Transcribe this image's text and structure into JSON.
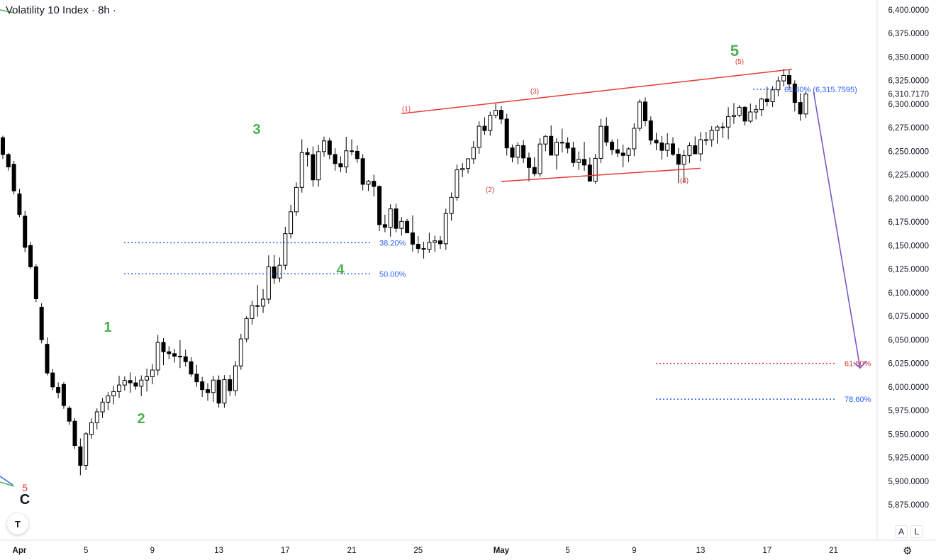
{
  "header": {
    "title": "Volatility 10 Index · 8h ·"
  },
  "buttons": {
    "auto_scale": "A",
    "log_scale": "L",
    "settings_icon": "gear-icon",
    "logo_icon": "tradingview-logo-icon"
  },
  "colors": {
    "up_candle_fill": "#ffffff",
    "candle_outline": "#000000",
    "down_candle_fill": "#000000",
    "wave_green": "#4caf50",
    "wave_red": "#e53935",
    "fib_blue": "#2962ff",
    "fib_red": "#e53935",
    "projection_arrow": "#7e57c2",
    "channel_line": "#e53935"
  },
  "chart_data": {
    "type": "candlestick",
    "title": "Volatility 10 Index · 8h ·",
    "y_axis": {
      "ticks": [
        "6,400.0000",
        "6,375.0000",
        "6,350.0000",
        "6,325.0000",
        "6,300.0000",
        "6,275.0000",
        "6,250.0000",
        "6,225.0000",
        "6,200.0000",
        "6,175.0000",
        "6,150.0000",
        "6,125.0000",
        "6,100.0000",
        "6,075.0000",
        "6,050.0000",
        "6,025.0000",
        "6,000.0000",
        "5,975.0000",
        "5,950.0000",
        "5,925.0000",
        "5,900.0000",
        "5,875.0000"
      ],
      "range": [
        5865,
        6410
      ],
      "last_price_label": "6,310.7170",
      "side": "right"
    },
    "x_axis": {
      "ticks": [
        {
          "label": "Apr",
          "day": 1,
          "bold": true
        },
        {
          "label": "5",
          "day": 5
        },
        {
          "label": "9",
          "day": 9
        },
        {
          "label": "13",
          "day": 13
        },
        {
          "label": "17",
          "day": 17
        },
        {
          "label": "21",
          "day": 21
        },
        {
          "label": "25",
          "day": 25
        },
        {
          "label": "May",
          "day": 30,
          "bold": true
        },
        {
          "label": "5",
          "day": 34
        },
        {
          "label": "9",
          "day": 38
        },
        {
          "label": "13",
          "day": 42
        },
        {
          "label": "17",
          "day": 46
        },
        {
          "label": "21",
          "day": 50
        }
      ],
      "range_days": [
        0,
        54
      ]
    },
    "grid": false,
    "candles": [
      [
        0.0,
        6264.4,
        6266.5,
        6241.9,
        6246.6
      ],
      [
        0.333,
        6246.6,
        6248.2,
        6229.6,
        6233.4
      ],
      [
        0.667,
        6236.2,
        6239.8,
        6204.2,
        6207.9
      ],
      [
        1.0,
        6204.8,
        6210.1,
        6180.1,
        6182.9
      ],
      [
        1.333,
        6181.2,
        6186.8,
        6142.9,
        6148.1
      ],
      [
        1.667,
        6150.0,
        6153.9,
        6125.3,
        6127.4
      ],
      [
        2.0,
        6127.4,
        6130.1,
        6089.8,
        6093.5
      ],
      [
        2.333,
        6084.5,
        6088.8,
        6046.3,
        6050.0
      ],
      [
        2.667,
        6045.2,
        6052.5,
        6012.2,
        6014.8
      ],
      [
        3.0,
        6014.8,
        6019.0,
        5996.5,
        6000.0
      ],
      [
        3.333,
        5999.5,
        6004.8,
        5988.1,
        5994.0
      ],
      [
        3.667,
        6002.6,
        6005.0,
        5976.7,
        5980.2
      ],
      [
        4.0,
        5977.4,
        5979.6,
        5959.7,
        5963.6
      ],
      [
        4.333,
        5963.6,
        5966.8,
        5934.3,
        5937.8
      ],
      [
        4.667,
        5936.4,
        5945.3,
        5906.3,
        5916.7
      ],
      [
        5.0,
        5916.7,
        5952.1,
        5911.8,
        5950.2
      ],
      [
        5.333,
        5949.5,
        5966.7,
        5945.1,
        5962.0
      ],
      [
        5.667,
        5962.0,
        5977.2,
        5955.0,
        5973.5
      ],
      [
        6.0,
        5973.5,
        5988.3,
        5967.1,
        5983.8
      ],
      [
        6.333,
        5983.8,
        5994.4,
        5975.4,
        5990.5
      ],
      [
        6.667,
        5990.5,
        6000.7,
        5981.5,
        5995.1
      ],
      [
        7.0,
        5995.1,
        6011.8,
        5988.2,
        6002.0
      ],
      [
        7.333,
        6002.0,
        6011.1,
        5996.2,
        6006.8
      ],
      [
        7.667,
        6006.8,
        6015.4,
        5993.8,
        6004.3
      ],
      [
        8.0,
        6004.3,
        6011.1,
        5997.0,
        6000.7
      ],
      [
        8.333,
        6000.7,
        6012.2,
        5990.1,
        6007.2
      ],
      [
        8.667,
        6007.2,
        6019.4,
        5995.2,
        6010.8
      ],
      [
        9.0,
        6010.8,
        6024.1,
        6002.8,
        6017.9
      ],
      [
        9.333,
        6017.9,
        6055.1,
        6012.3,
        6047.2
      ],
      [
        9.667,
        6047.2,
        6051.7,
        6023.0,
        6037.3
      ],
      [
        10.0,
        6037.3,
        6043.1,
        6029.4,
        6035.3
      ],
      [
        10.333,
        6035.3,
        6040.5,
        6025.6,
        6032.6
      ],
      [
        10.667,
        6032.6,
        6049.6,
        6020.0,
        6032.0
      ],
      [
        11.0,
        6032.0,
        6039.4,
        6021.5,
        6026.7
      ],
      [
        11.333,
        6026.7,
        6031.5,
        6010.7,
        6013.6
      ],
      [
        11.667,
        6013.6,
        6023.4,
        6000.1,
        6005.4
      ],
      [
        12.0,
        6005.4,
        6010.6,
        5989.2,
        5997.1
      ],
      [
        12.333,
        5997.1,
        6003.9,
        5985.3,
        5994.0
      ],
      [
        12.667,
        5994.0,
        6011.9,
        5984.1,
        6007.2
      ],
      [
        13.0,
        6007.2,
        6012.2,
        5978.2,
        5982.8
      ],
      [
        13.333,
        5982.8,
        6012.5,
        5977.9,
        6007.7
      ],
      [
        13.667,
        6007.7,
        6012.8,
        5990.6,
        5996.0
      ],
      [
        14.0,
        5996.0,
        6027.4,
        5990.6,
        6022.3
      ],
      [
        14.333,
        6022.3,
        6056.4,
        6018.2,
        6050.9
      ],
      [
        14.667,
        6050.9,
        6075.0,
        6047.3,
        6072.5
      ],
      [
        15.0,
        6072.5,
        6091.6,
        6066.2,
        6086.2
      ],
      [
        15.333,
        6086.2,
        6108.0,
        6074.6,
        6085.7
      ],
      [
        15.667,
        6085.7,
        6103.8,
        6078.4,
        6093.1
      ],
      [
        16.0,
        6093.1,
        6139.6,
        6088.1,
        6127.4
      ],
      [
        16.333,
        6127.4,
        6139.9,
        6109.0,
        6115.5
      ],
      [
        16.667,
        6115.5,
        6137.4,
        6111.1,
        6129.1
      ],
      [
        17.0,
        6129.1,
        6169.9,
        6124.2,
        6162.6
      ],
      [
        17.333,
        6162.6,
        6193.3,
        6157.5,
        6185.8
      ],
      [
        17.667,
        6185.8,
        6217.0,
        6181.4,
        6211.7
      ],
      [
        18.0,
        6211.7,
        6262.7,
        6206.1,
        6248.6
      ],
      [
        18.333,
        6248.6,
        6253.4,
        6233.8,
        6246.4
      ],
      [
        18.667,
        6246.4,
        6255.1,
        6212.5,
        6219.7
      ],
      [
        19.0,
        6219.7,
        6256.8,
        6212.5,
        6249.7
      ],
      [
        19.333,
        6249.7,
        6265.6,
        6244.3,
        6261.0
      ],
      [
        19.667,
        6261.0,
        6264.3,
        6241.6,
        6246.6
      ],
      [
        20.0,
        6246.6,
        6253.2,
        6229.4,
        6236.9
      ],
      [
        20.333,
        6236.9,
        6244.8,
        6227.7,
        6233.4
      ],
      [
        20.667,
        6233.4,
        6265.4,
        6226.9,
        6250.5
      ],
      [
        21.0,
        6250.5,
        6262.7,
        6245.7,
        6250.0
      ],
      [
        21.333,
        6250.0,
        6256.1,
        6237.9,
        6242.2
      ],
      [
        21.667,
        6242.2,
        6247.0,
        6208.5,
        6215.0
      ],
      [
        22.0,
        6215.0,
        6219.5,
        6207.9,
        6218.2
      ],
      [
        22.333,
        6218.2,
        6225.3,
        6202.1,
        6212.7
      ],
      [
        22.667,
        6212.7,
        6213.7,
        6165.3,
        6172.2
      ],
      [
        23.0,
        6172.2,
        6182.8,
        6164.1,
        6169.4
      ],
      [
        23.333,
        6169.4,
        6193.7,
        6159.5,
        6188.9
      ],
      [
        23.667,
        6188.9,
        6194.5,
        6164.0,
        6168.2
      ],
      [
        24.0,
        6168.2,
        6180.3,
        6160.4,
        6175.6
      ],
      [
        24.333,
        6175.6,
        6178.3,
        6163.6,
        6163.5
      ],
      [
        24.667,
        6163.5,
        6182.0,
        6143.6,
        6151.4
      ],
      [
        25.0,
        6151.4,
        6160.2,
        6141.6,
        6146.8
      ],
      [
        25.333,
        6146.8,
        6154.1,
        6136.2,
        6146.0
      ],
      [
        25.667,
        6146.0,
        6163.6,
        6142.1,
        6153.3
      ],
      [
        26.0,
        6153.3,
        6160.5,
        6143.4,
        6155.0
      ],
      [
        26.333,
        6155.0,
        6160.0,
        6146.5,
        6151.9
      ],
      [
        26.667,
        6151.9,
        6189.1,
        6145.4,
        6184.0
      ],
      [
        27.0,
        6184.0,
        6206.3,
        6176.3,
        6201.2
      ],
      [
        27.333,
        6201.2,
        6236.0,
        6197.5,
        6230.3
      ],
      [
        27.667,
        6230.3,
        6237.4,
        6222.6,
        6231.8
      ],
      [
        28.0,
        6231.8,
        6242.1,
        6226.6,
        6242.1
      ],
      [
        28.333,
        6242.1,
        6260.8,
        6236.8,
        6254.1
      ],
      [
        28.667,
        6254.1,
        6281.8,
        6247.3,
        6276.6
      ],
      [
        29.0,
        6276.6,
        6286.1,
        6267.4,
        6272.0
      ],
      [
        29.333,
        6272.0,
        6292.1,
        6266.5,
        6288.3
      ],
      [
        29.667,
        6288.3,
        6300.5,
        6285.0,
        6293.5
      ],
      [
        30.0,
        6293.5,
        6298.2,
        6278.9,
        6284.2
      ],
      [
        30.333,
        6284.2,
        6289.7,
        6245.5,
        6253.6
      ],
      [
        30.667,
        6253.6,
        6257.1,
        6238.3,
        6243.7
      ],
      [
        31.0,
        6243.7,
        6259.6,
        6236.4,
        6256.1
      ],
      [
        31.333,
        6256.1,
        6262.0,
        6237.5,
        6242.9
      ],
      [
        31.667,
        6242.9,
        6248.6,
        6218.2,
        6232.8
      ],
      [
        32.0,
        6232.8,
        6243.7,
        6223.5,
        6226.3
      ],
      [
        32.333,
        6226.3,
        6264.0,
        6222.9,
        6257.7
      ],
      [
        32.667,
        6257.7,
        6267.0,
        6250.0,
        6265.9
      ],
      [
        33.0,
        6265.9,
        6277.4,
        6247.0,
        6245.9
      ],
      [
        33.333,
        6245.9,
        6263.8,
        6230.6,
        6259.5
      ],
      [
        33.667,
        6259.5,
        6274.1,
        6248.8,
        6258.8
      ],
      [
        34.0,
        6258.8,
        6264.8,
        6247.8,
        6253.4
      ],
      [
        34.333,
        6253.4,
        6260.0,
        6233.7,
        6238.1
      ],
      [
        34.667,
        6238.1,
        6249.8,
        6230.1,
        6241.4
      ],
      [
        35.0,
        6241.4,
        6260.0,
        6229.3,
        6235.4
      ],
      [
        35.333,
        6235.4,
        6243.4,
        6219.0,
        6218.3
      ],
      [
        35.667,
        6218.3,
        6247.1,
        6215.3,
        6242.5
      ],
      [
        36.0,
        6242.5,
        6284.4,
        6237.3,
        6276.5
      ],
      [
        36.333,
        6276.5,
        6286.1,
        6255.7,
        6259.8
      ],
      [
        36.667,
        6259.8,
        6262.6,
        6246.1,
        6251.7
      ],
      [
        37.0,
        6251.7,
        6263.2,
        6243.8,
        6248.1
      ],
      [
        37.333,
        6248.1,
        6257.1,
        6233.0,
        6245.6
      ],
      [
        37.667,
        6245.6,
        6254.2,
        6238.4,
        6252.6
      ],
      [
        38.0,
        6252.6,
        6279.7,
        6244.8,
        6274.4
      ],
      [
        38.333,
        6274.4,
        6305.2,
        6271.2,
        6302.3
      ],
      [
        38.667,
        6302.3,
        6307.3,
        6276.7,
        6282.3
      ],
      [
        39.0,
        6282.3,
        6287.1,
        6257.2,
        6261.8
      ],
      [
        39.333,
        6261.8,
        6269.6,
        6251.1,
        6258.8
      ],
      [
        39.667,
        6258.8,
        6266.2,
        6241.3,
        6251.0
      ],
      [
        40.0,
        6251.0,
        6269.2,
        6244.2,
        6257.9
      ],
      [
        40.333,
        6257.9,
        6264.9,
        6245.1,
        6246.9
      ],
      [
        40.667,
        6246.9,
        6253.6,
        6216.2,
        6236.2
      ],
      [
        41.0,
        6236.2,
        6251.4,
        6216.4,
        6245.5
      ],
      [
        41.333,
        6245.5,
        6259.4,
        6237.4,
        6255.9
      ],
      [
        41.667,
        6255.9,
        6265.8,
        6247.3,
        6247.3
      ],
      [
        42.0,
        6247.3,
        6270.3,
        6239.7,
        6262.3
      ],
      [
        42.333,
        6262.3,
        6270.5,
        6256.5,
        6262.1
      ],
      [
        42.667,
        6262.1,
        6276.6,
        6255.0,
        6272.1
      ],
      [
        43.0,
        6272.1,
        6277.9,
        6258.0,
        6275.8
      ],
      [
        43.333,
        6275.8,
        6280.8,
        6264.1,
        6275.7
      ],
      [
        43.667,
        6275.7,
        6296.7,
        6262.7,
        6286.9
      ],
      [
        44.0,
        6286.9,
        6301.1,
        6279.1,
        6288.3
      ],
      [
        44.333,
        6288.3,
        6299.0,
        6286.0,
        6296.7
      ],
      [
        44.667,
        6296.7,
        6298.1,
        6277.3,
        6282.0
      ],
      [
        45.0,
        6282.0,
        6300.6,
        6280.2,
        6291.7
      ],
      [
        45.333,
        6291.7,
        6299.4,
        6283.8,
        6294.2
      ],
      [
        45.667,
        6294.2,
        6306.9,
        6287.1,
        6305.4
      ],
      [
        46.0,
        6305.4,
        6318.5,
        6297.7,
        6302.6
      ],
      [
        46.333,
        6302.6,
        6319.1,
        6296.9,
        6315.2
      ],
      [
        46.667,
        6315.2,
        6329.4,
        6308.4,
        6324.7
      ],
      [
        47.0,
        6324.7,
        6337.5,
        6318.8,
        6330.4
      ],
      [
        47.333,
        6330.4,
        6336.6,
        6314.9,
        6321.4
      ],
      [
        47.667,
        6321.4,
        6325.2,
        6292.3,
        6301.8
      ],
      [
        48.0,
        6301.8,
        6311.6,
        6282.5,
        6289.6
      ],
      [
        48.333,
        6289.6,
        6313.9,
        6285.1,
        6310.7
      ]
    ],
    "wave_labels_green": [
      {
        "text": "C",
        "color": "#131722"
      },
      {
        "text": "1"
      },
      {
        "text": "2"
      },
      {
        "text": "3"
      },
      {
        "text": "4"
      },
      {
        "text": "5"
      }
    ],
    "wave_labels_red": [
      {
        "text": "5"
      },
      {
        "text": "(1)"
      },
      {
        "text": "(2)"
      },
      {
        "text": "(3)"
      },
      {
        "text": "(4)"
      },
      {
        "text": "(5)"
      }
    ],
    "fib_labels": {
      "retrace_38": "38.20%",
      "retrace_50": "50.00%",
      "top_level": "61.80% (6,315.7595)",
      "target_61": "61.80%",
      "target_78": "78.60%"
    },
    "fib_levels": {
      "retrace_38": 6153.0,
      "retrace_50": 6120.0,
      "top_level": 6315.7595,
      "target_61": 6025.0,
      "target_78": 5987.0
    },
    "channel": {
      "upper": [
        [
          24.0,
          6290.0
        ],
        [
          47.5,
          6337.0
        ]
      ],
      "lower": [
        [
          30.0,
          6218.0
        ],
        [
          42.0,
          6232.0
        ]
      ]
    },
    "projection": {
      "from": [
        48.8,
        6313.0
      ],
      "to": [
        51.6,
        6020.0
      ]
    }
  }
}
